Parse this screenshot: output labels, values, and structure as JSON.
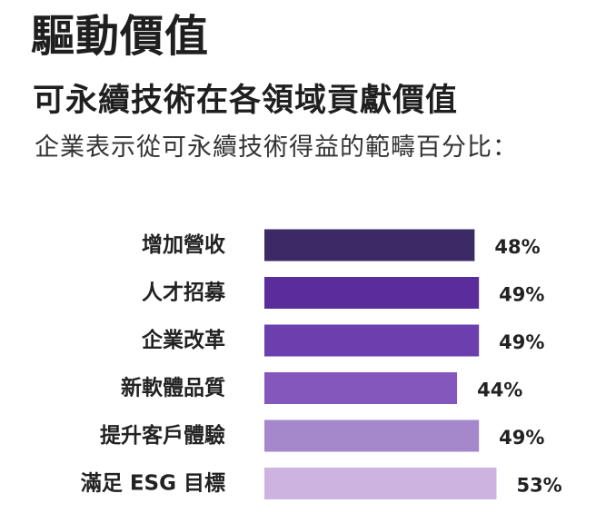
{
  "header": {
    "title": "驅動價值",
    "subtitle": "可永續技術在各領域貢獻價值",
    "caption": "企業表示從可永續技術得益的範疇百分比："
  },
  "chart_data": {
    "type": "bar",
    "orientation": "horizontal",
    "categories": [
      "增加營收",
      "人才招募",
      "企業改革",
      "新軟體品質",
      "提升客戶體驗",
      "滿足 ESG 目標"
    ],
    "values": [
      48,
      49,
      49,
      44,
      49,
      53
    ],
    "value_labels": [
      "48%",
      "49%",
      "49%",
      "44%",
      "49%",
      "53%"
    ],
    "unit": "%",
    "colors": [
      "#3b2a66",
      "#5b2d9c",
      "#6c3fae",
      "#8457bd",
      "#a587cc",
      "#cdb3e0"
    ],
    "xlim": [
      0,
      100
    ],
    "grid": false,
    "legend": "none"
  }
}
